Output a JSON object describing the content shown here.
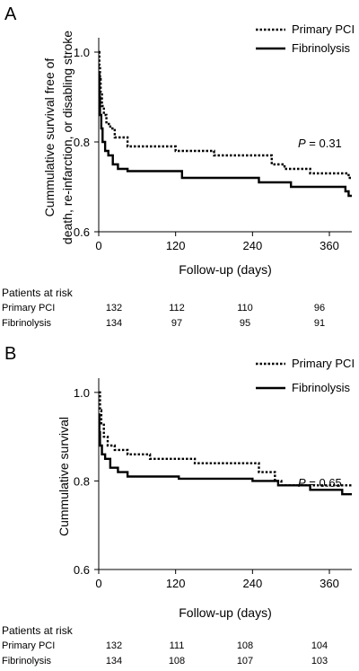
{
  "chart_data": [
    {
      "panel_label": "A",
      "type": "line",
      "ylabel_lines": [
        "Cummulative survival free of",
        "death, re-infarction, or disabling stroke"
      ],
      "xlabel": "Follow-up (days)",
      "xlim": [
        0,
        395
      ],
      "ylim": [
        0.6,
        1.02
      ],
      "x_ticks": [
        0,
        120,
        240,
        360
      ],
      "y_ticks": [
        1.0,
        0.8,
        0.6
      ],
      "x_tick_labels": [
        "0",
        "120",
        "240",
        "360"
      ],
      "y_tick_labels": [
        "1.0",
        "0.8",
        "0.6"
      ],
      "grid": false,
      "legend_position": "top-right",
      "p_value": {
        "label": "P",
        "text": " = 0.31"
      },
      "series": [
        {
          "name": "Primary PCI",
          "style": "dotted",
          "steps": [
            [
              0,
              1.0
            ],
            [
              1,
              0.97
            ],
            [
              2,
              0.94
            ],
            [
              3,
              0.91
            ],
            [
              5,
              0.88
            ],
            [
              8,
              0.86
            ],
            [
              12,
              0.84
            ],
            [
              18,
              0.83
            ],
            [
              25,
              0.81
            ],
            [
              45,
              0.79
            ],
            [
              120,
              0.78
            ],
            [
              180,
              0.77
            ],
            [
              270,
              0.75
            ],
            [
              290,
              0.74
            ],
            [
              330,
              0.73
            ],
            [
              390,
              0.72
            ],
            [
              395,
              0.72
            ]
          ]
        },
        {
          "name": "Fibrinolysis",
          "style": "solid",
          "steps": [
            [
              0,
              0.95
            ],
            [
              1,
              0.9
            ],
            [
              2,
              0.86
            ],
            [
              4,
              0.83
            ],
            [
              6,
              0.8
            ],
            [
              10,
              0.78
            ],
            [
              15,
              0.77
            ],
            [
              22,
              0.75
            ],
            [
              30,
              0.74
            ],
            [
              45,
              0.735
            ],
            [
              130,
              0.72
            ],
            [
              250,
              0.71
            ],
            [
              300,
              0.7
            ],
            [
              385,
              0.69
            ],
            [
              390,
              0.68
            ],
            [
              395,
              0.68
            ]
          ]
        }
      ],
      "risk_table": {
        "title": "Patients at risk",
        "rows": [
          {
            "name": "Primary PCI",
            "values": [
              "132",
              "112",
              "110",
              "96"
            ]
          },
          {
            "name": "Fibrinolysis",
            "values": [
              "134",
              "97",
              "95",
              "91"
            ]
          }
        ]
      }
    },
    {
      "panel_label": "B",
      "type": "line",
      "ylabel_lines": [
        "Cummulative survival"
      ],
      "xlabel": "Follow-up (days)",
      "xlim": [
        0,
        395
      ],
      "ylim": [
        0.6,
        1.02
      ],
      "x_ticks": [
        0,
        120,
        240,
        360
      ],
      "y_ticks": [
        1.0,
        0.8,
        0.6
      ],
      "x_tick_labels": [
        "0",
        "120",
        "240",
        "360"
      ],
      "y_tick_labels": [
        "1.0",
        "0.8",
        "0.6"
      ],
      "grid": false,
      "legend_position": "top-right",
      "p_value": {
        "label": "P",
        "text": " = 0.65"
      },
      "series": [
        {
          "name": "Primary PCI",
          "style": "dotted",
          "steps": [
            [
              0,
              1.0
            ],
            [
              2,
              0.96
            ],
            [
              4,
              0.93
            ],
            [
              8,
              0.9
            ],
            [
              14,
              0.88
            ],
            [
              25,
              0.87
            ],
            [
              45,
              0.86
            ],
            [
              80,
              0.85
            ],
            [
              150,
              0.84
            ],
            [
              250,
              0.82
            ],
            [
              275,
              0.8
            ],
            [
              285,
              0.79
            ],
            [
              395,
              0.79
            ]
          ]
        },
        {
          "name": "Fibrinolysis",
          "style": "solid",
          "steps": [
            [
              0,
              0.95
            ],
            [
              1,
              0.91
            ],
            [
              2,
              0.88
            ],
            [
              5,
              0.86
            ],
            [
              10,
              0.85
            ],
            [
              18,
              0.83
            ],
            [
              30,
              0.82
            ],
            [
              45,
              0.81
            ],
            [
              125,
              0.805
            ],
            [
              240,
              0.8
            ],
            [
              280,
              0.79
            ],
            [
              330,
              0.78
            ],
            [
              380,
              0.77
            ],
            [
              395,
              0.77
            ]
          ]
        }
      ],
      "risk_table": {
        "title": "Patients at risk",
        "rows": [
          {
            "name": "Primary PCI",
            "values": [
              "132",
              "111",
              "108",
              "104"
            ]
          },
          {
            "name": "Fibrinolysis",
            "values": [
              "134",
              "108",
              "107",
              "103"
            ]
          }
        ]
      }
    }
  ]
}
